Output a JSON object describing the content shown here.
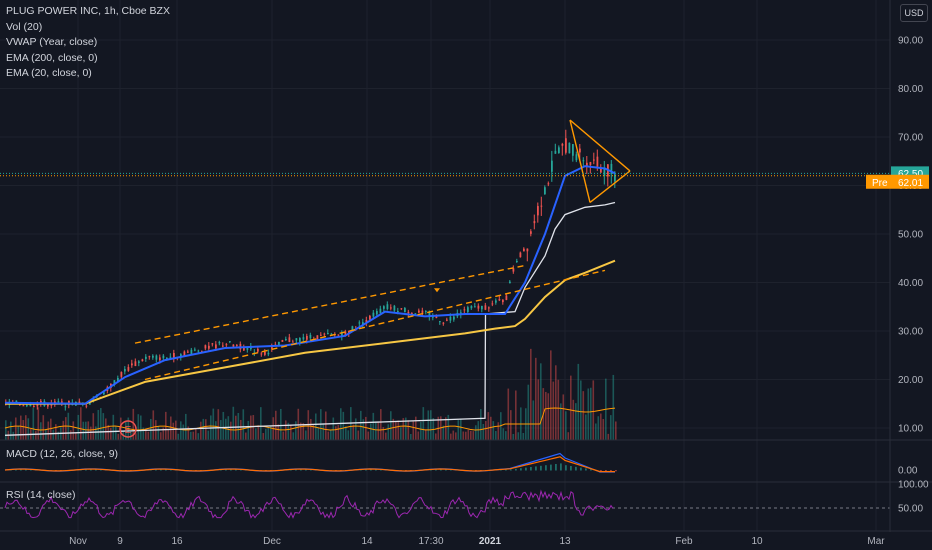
{
  "legend": {
    "symbol": "PLUG POWER INC, 1h, Cboe BZX",
    "vol": "Vol (20)",
    "vwap": "VWAP (Year, close)",
    "ema200": "EMA (200, close, 0)",
    "ema20": "EMA (20, close, 0)"
  },
  "currency": "USD",
  "macd_label": "MACD (12, 26, close, 9)",
  "rsi_label": "RSI (14, close)",
  "colors": {
    "background": "#131722",
    "up": "#26a69a",
    "down": "#ef5350",
    "ema20": "#2962ff",
    "ema200": "#f7c744",
    "vwap": "#e0e3eb",
    "trendline": "#ff9800",
    "rsi": "#9c27b0",
    "macd": "#2962ff",
    "signal": "#ff6d00",
    "last_price_bg": "#26a69a",
    "pre_price_bg": "#ff9800"
  },
  "chart_data": {
    "type": "candlestick",
    "y_range": [
      5,
      97
    ],
    "price_ticks": [
      "90.00",
      "80.00",
      "70.00",
      "60.00",
      "50.00",
      "40.00",
      "30.00",
      "20.00",
      "10.00"
    ],
    "x_ticks": [
      "Nov",
      "9",
      "16",
      "Dec",
      "14",
      "17:30",
      "2021",
      "13",
      "Feb",
      "10",
      "Mar"
    ],
    "last_price": "62.50",
    "pre_market": {
      "label": "Pre",
      "price": "62.01"
    },
    "price_path": [
      [
        0,
        15.0
      ],
      [
        8,
        15.0
      ],
      [
        10,
        17.5
      ],
      [
        12,
        22.0
      ],
      [
        14,
        24.5
      ],
      [
        16,
        24.5
      ],
      [
        18,
        25.5
      ],
      [
        22,
        27.5
      ],
      [
        26,
        25.5
      ],
      [
        28,
        28.0
      ],
      [
        30,
        28.5
      ],
      [
        34,
        29.5
      ],
      [
        38,
        35.0
      ],
      [
        42,
        33.5
      ],
      [
        44,
        32.0
      ],
      [
        46,
        34.5
      ],
      [
        48,
        35.0
      ],
      [
        50,
        36.5
      ],
      [
        51,
        44.5
      ],
      [
        52,
        47.0
      ],
      [
        53,
        54.0
      ],
      [
        55,
        66.0
      ],
      [
        56,
        68.5
      ],
      [
        57,
        66.5
      ],
      [
        58,
        65.5
      ],
      [
        60,
        63.5
      ],
      [
        61,
        62.5
      ]
    ],
    "ema20_path": [
      [
        0,
        15.2
      ],
      [
        8,
        15.0
      ],
      [
        12,
        20.5
      ],
      [
        16,
        24.0
      ],
      [
        22,
        26.5
      ],
      [
        28,
        27.0
      ],
      [
        34,
        29.0
      ],
      [
        38,
        34.0
      ],
      [
        42,
        33.0
      ],
      [
        46,
        33.5
      ],
      [
        50,
        33.5
      ],
      [
        52,
        40.0
      ],
      [
        54,
        50.0
      ],
      [
        56,
        62.0
      ],
      [
        58,
        64.0
      ],
      [
        60,
        63.5
      ],
      [
        61,
        62.5
      ]
    ],
    "ema200_path": [
      [
        0,
        15.0
      ],
      [
        8,
        15.0
      ],
      [
        14,
        19.5
      ],
      [
        22,
        22.5
      ],
      [
        30,
        25.5
      ],
      [
        38,
        27.5
      ],
      [
        46,
        29.5
      ],
      [
        49,
        30.5
      ],
      [
        51,
        31.0
      ],
      [
        52,
        32.5
      ],
      [
        54,
        37.0
      ],
      [
        56,
        40.5
      ],
      [
        58,
        42.0
      ],
      [
        61,
        44.5
      ]
    ],
    "vwap_path": [
      [
        0,
        8.5
      ],
      [
        48,
        12.0
      ],
      [
        48.05,
        33.5
      ],
      [
        51,
        34.0
      ],
      [
        52,
        39.0
      ],
      [
        54,
        45.5
      ],
      [
        55,
        51.0
      ],
      [
        56,
        54.0
      ],
      [
        58,
        55.5
      ],
      [
        60,
        56.0
      ],
      [
        61,
        56.5
      ]
    ],
    "trendlines": [
      {
        "style": "dashed",
        "from": [
          13,
          27.5
        ],
        "to": [
          52,
          43.5
        ]
      },
      {
        "style": "dashed",
        "from": [
          14,
          20.0
        ],
        "to": [
          60,
          42.5
        ]
      },
      {
        "style": "solid",
        "from": [
          56.5,
          73.5
        ],
        "to": [
          62.5,
          63.0
        ]
      },
      {
        "style": "solid",
        "from": [
          58.5,
          56.5
        ],
        "to": [
          62.5,
          63.0
        ]
      },
      {
        "style": "solid",
        "from": [
          56.5,
          73.5
        ],
        "to": [
          58.5,
          56.5
        ]
      }
    ],
    "earnings_marker": "E",
    "signal_marker_value": 38.0,
    "macd_ticks": [
      "0.00"
    ],
    "rsi_ticks": [
      "100.00",
      "50.00"
    ]
  }
}
